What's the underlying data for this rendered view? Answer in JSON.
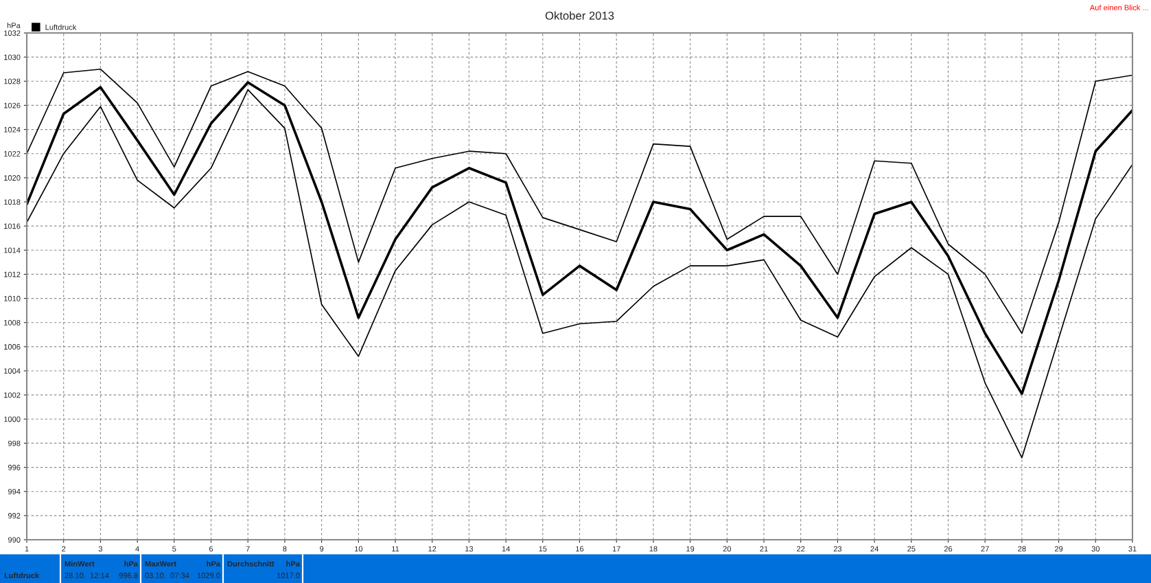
{
  "chart_data": {
    "type": "line",
    "title": "Oktober 2013",
    "ylabel": "hPa",
    "x": [
      1,
      2,
      3,
      4,
      5,
      6,
      7,
      8,
      9,
      10,
      11,
      12,
      13,
      14,
      15,
      16,
      17,
      18,
      19,
      20,
      21,
      22,
      23,
      24,
      25,
      26,
      27,
      28,
      29,
      30,
      31
    ],
    "series": [
      {
        "color": "#000000",
        "values": [
          1022.0,
          1028.7,
          1029.0,
          1026.2,
          1020.9,
          1027.6,
          1028.8,
          1027.6,
          1024.1,
          1013.0,
          1020.8,
          1021.6,
          1022.2,
          1022.0,
          1016.7,
          1015.7,
          1014.7,
          1022.8,
          1022.6,
          1014.9,
          1016.8,
          1016.8,
          1012.0,
          1021.4,
          1021.2,
          1014.5,
          1012.0,
          1007.1,
          1016.3,
          1028.0,
          1028.5
        ]
      },
      {
        "name": "Luftdruck",
        "color": "#000000",
        "values": [
          1017.8,
          1025.3,
          1027.5,
          1023.1,
          1018.6,
          1024.5,
          1027.9,
          1026.0,
          1018.0,
          1008.4,
          1014.9,
          1019.2,
          1020.8,
          1019.6,
          1010.3,
          1012.7,
          1010.7,
          1018.0,
          1017.4,
          1014.0,
          1015.3,
          1012.7,
          1008.4,
          1017.0,
          1018.0,
          1013.5,
          1007.1,
          1002.1,
          1011.5,
          1022.2,
          1025.6
        ]
      },
      {
        "color": "#000000",
        "values": [
          1016.3,
          1022.0,
          1025.9,
          1019.8,
          1017.5,
          1020.8,
          1027.3,
          1024.1,
          1009.5,
          1005.2,
          1012.3,
          1016.1,
          1018.0,
          1016.9,
          1007.1,
          1007.9,
          1008.1,
          1011.0,
          1012.7,
          1012.7,
          1013.2,
          1008.2,
          1006.8,
          1011.8,
          1014.2,
          1012.0,
          1003.0,
          996.8,
          1006.7,
          1016.6,
          1021.1
        ]
      }
    ],
    "xlim": [
      1,
      31
    ],
    "xticks": [
      1,
      2,
      3,
      4,
      5,
      6,
      7,
      8,
      9,
      10,
      11,
      12,
      13,
      14,
      15,
      16,
      17,
      18,
      19,
      20,
      21,
      22,
      23,
      24,
      25,
      26,
      27,
      28,
      29,
      30,
      31
    ],
    "ylim": [
      990,
      1032
    ],
    "yticks": [
      990,
      992,
      994,
      996,
      998,
      1000,
      1002,
      1004,
      1006,
      1008,
      1010,
      1012,
      1014,
      1016,
      1018,
      1020,
      1022,
      1024,
      1026,
      1028,
      1030,
      1032
    ],
    "grid": true,
    "legend": "top left",
    "marker": "none",
    "line_style": "solid",
    "annotations": [
      "Auf einen Blick ...",
      "Luftdruck",
      "MinWert",
      "hPa",
      "28.10.  12:14",
      "996.8",
      "MaxWert",
      "hPa",
      "03.10.  07:34",
      "1029.0",
      "Durchschnitt",
      "hPa",
      "1017.0"
    ]
  }
}
